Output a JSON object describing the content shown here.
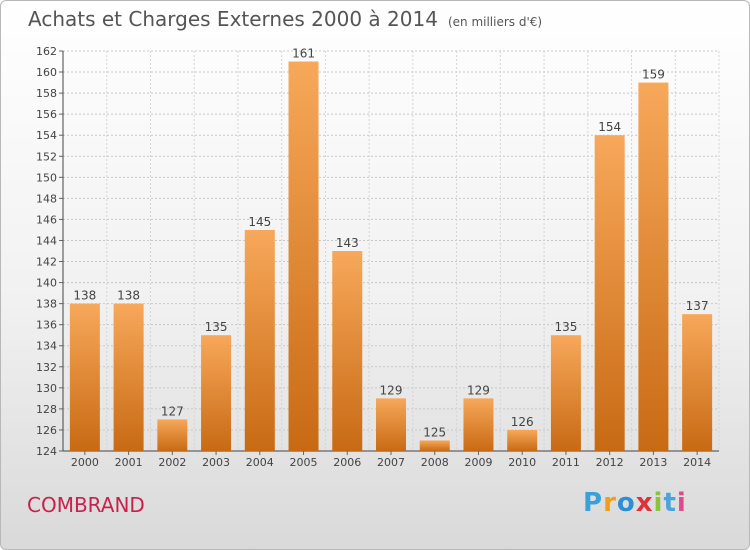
{
  "header": {
    "title": "Achats et Charges Externes 2000 à 2014",
    "unit": "(en milliers d'€)"
  },
  "footer": {
    "commune": "COMBRAND",
    "logo_letters": [
      "P",
      "r",
      "o",
      "x",
      "i",
      "t",
      "i"
    ],
    "logo_colors": [
      "#3aa0dc",
      "#f0a018",
      "#2f8fd6",
      "#e0303a",
      "#8cc23e",
      "#4aa4dc",
      "#e04a8c"
    ]
  },
  "colors": {
    "bar_top": "#f7a85a",
    "bar_bottom": "#c86a14",
    "title": "#555555",
    "commune": "#c8224c"
  },
  "chart_data": {
    "type": "bar",
    "title": "Achats et Charges Externes 2000 à 2014",
    "xlabel": "",
    "ylabel": "",
    "categories": [
      "2000",
      "2001",
      "2002",
      "2003",
      "2004",
      "2005",
      "2006",
      "2007",
      "2008",
      "2009",
      "2010",
      "2011",
      "2012",
      "2013",
      "2014"
    ],
    "values": [
      138,
      138,
      127,
      135,
      145,
      161,
      143,
      129,
      125,
      129,
      126,
      135,
      154,
      159,
      137
    ],
    "ylim": [
      124,
      162
    ],
    "yticks": [
      124,
      126,
      128,
      130,
      132,
      134,
      136,
      138,
      140,
      142,
      144,
      146,
      148,
      150,
      152,
      154,
      156,
      158,
      160,
      162
    ],
    "grid": true,
    "legend": "none"
  }
}
